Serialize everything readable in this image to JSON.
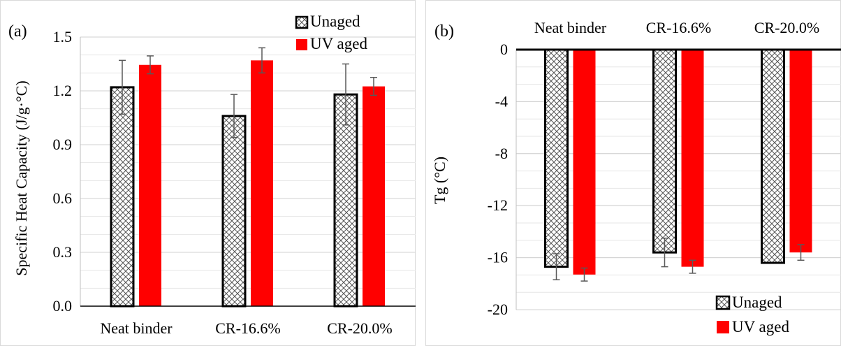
{
  "chart_data": [
    {
      "type": "bar",
      "panel_label": "(a)",
      "ylabel": "Specific Heat Capacity (J/g·°C)",
      "categories": [
        "Neat binder",
        "CR-16.6%",
        "CR-20.0%"
      ],
      "ylim": [
        0,
        1.5
      ],
      "yticks": [
        "0.0",
        "0.3",
        "0.6",
        "0.9",
        "1.2",
        "1.5"
      ],
      "ytick_values": [
        0,
        0.3,
        0.6,
        0.9,
        1.2,
        1.5
      ],
      "grid": true,
      "legend_position": "top-right",
      "series": [
        {
          "name": "Unaged",
          "values": [
            1.22,
            1.06,
            1.18
          ],
          "errors": [
            0.15,
            0.12,
            0.17
          ],
          "color": "#ffffff",
          "pattern": "crosshatch"
        },
        {
          "name": "UV aged",
          "values": [
            1.345,
            1.37,
            1.225
          ],
          "errors": [
            0.05,
            0.07,
            0.05
          ],
          "color": "#ff0000"
        }
      ]
    },
    {
      "type": "bar",
      "panel_label": "(b)",
      "ylabel": "Tg (°C)",
      "categories": [
        "Neat binder",
        "CR-16.6%",
        "CR-20.0%"
      ],
      "ylim": [
        -20,
        0
      ],
      "yticks": [
        "0",
        "-4",
        "-8",
        "-12",
        "-16",
        "-20"
      ],
      "ytick_values": [
        0,
        -4,
        -8,
        -12,
        -16,
        -20
      ],
      "grid": true,
      "legend_position": "bottom-right",
      "category_labels_position": "top",
      "series": [
        {
          "name": "Unaged",
          "values": [
            -16.7,
            -15.6,
            -16.4
          ],
          "errors": [
            1.0,
            1.1,
            0
          ],
          "color": "#ffffff",
          "pattern": "crosshatch"
        },
        {
          "name": "UV aged",
          "values": [
            -17.3,
            -16.7,
            -15.6
          ],
          "errors": [
            0.5,
            0.5,
            0.6
          ],
          "color": "#ff0000"
        }
      ]
    }
  ]
}
